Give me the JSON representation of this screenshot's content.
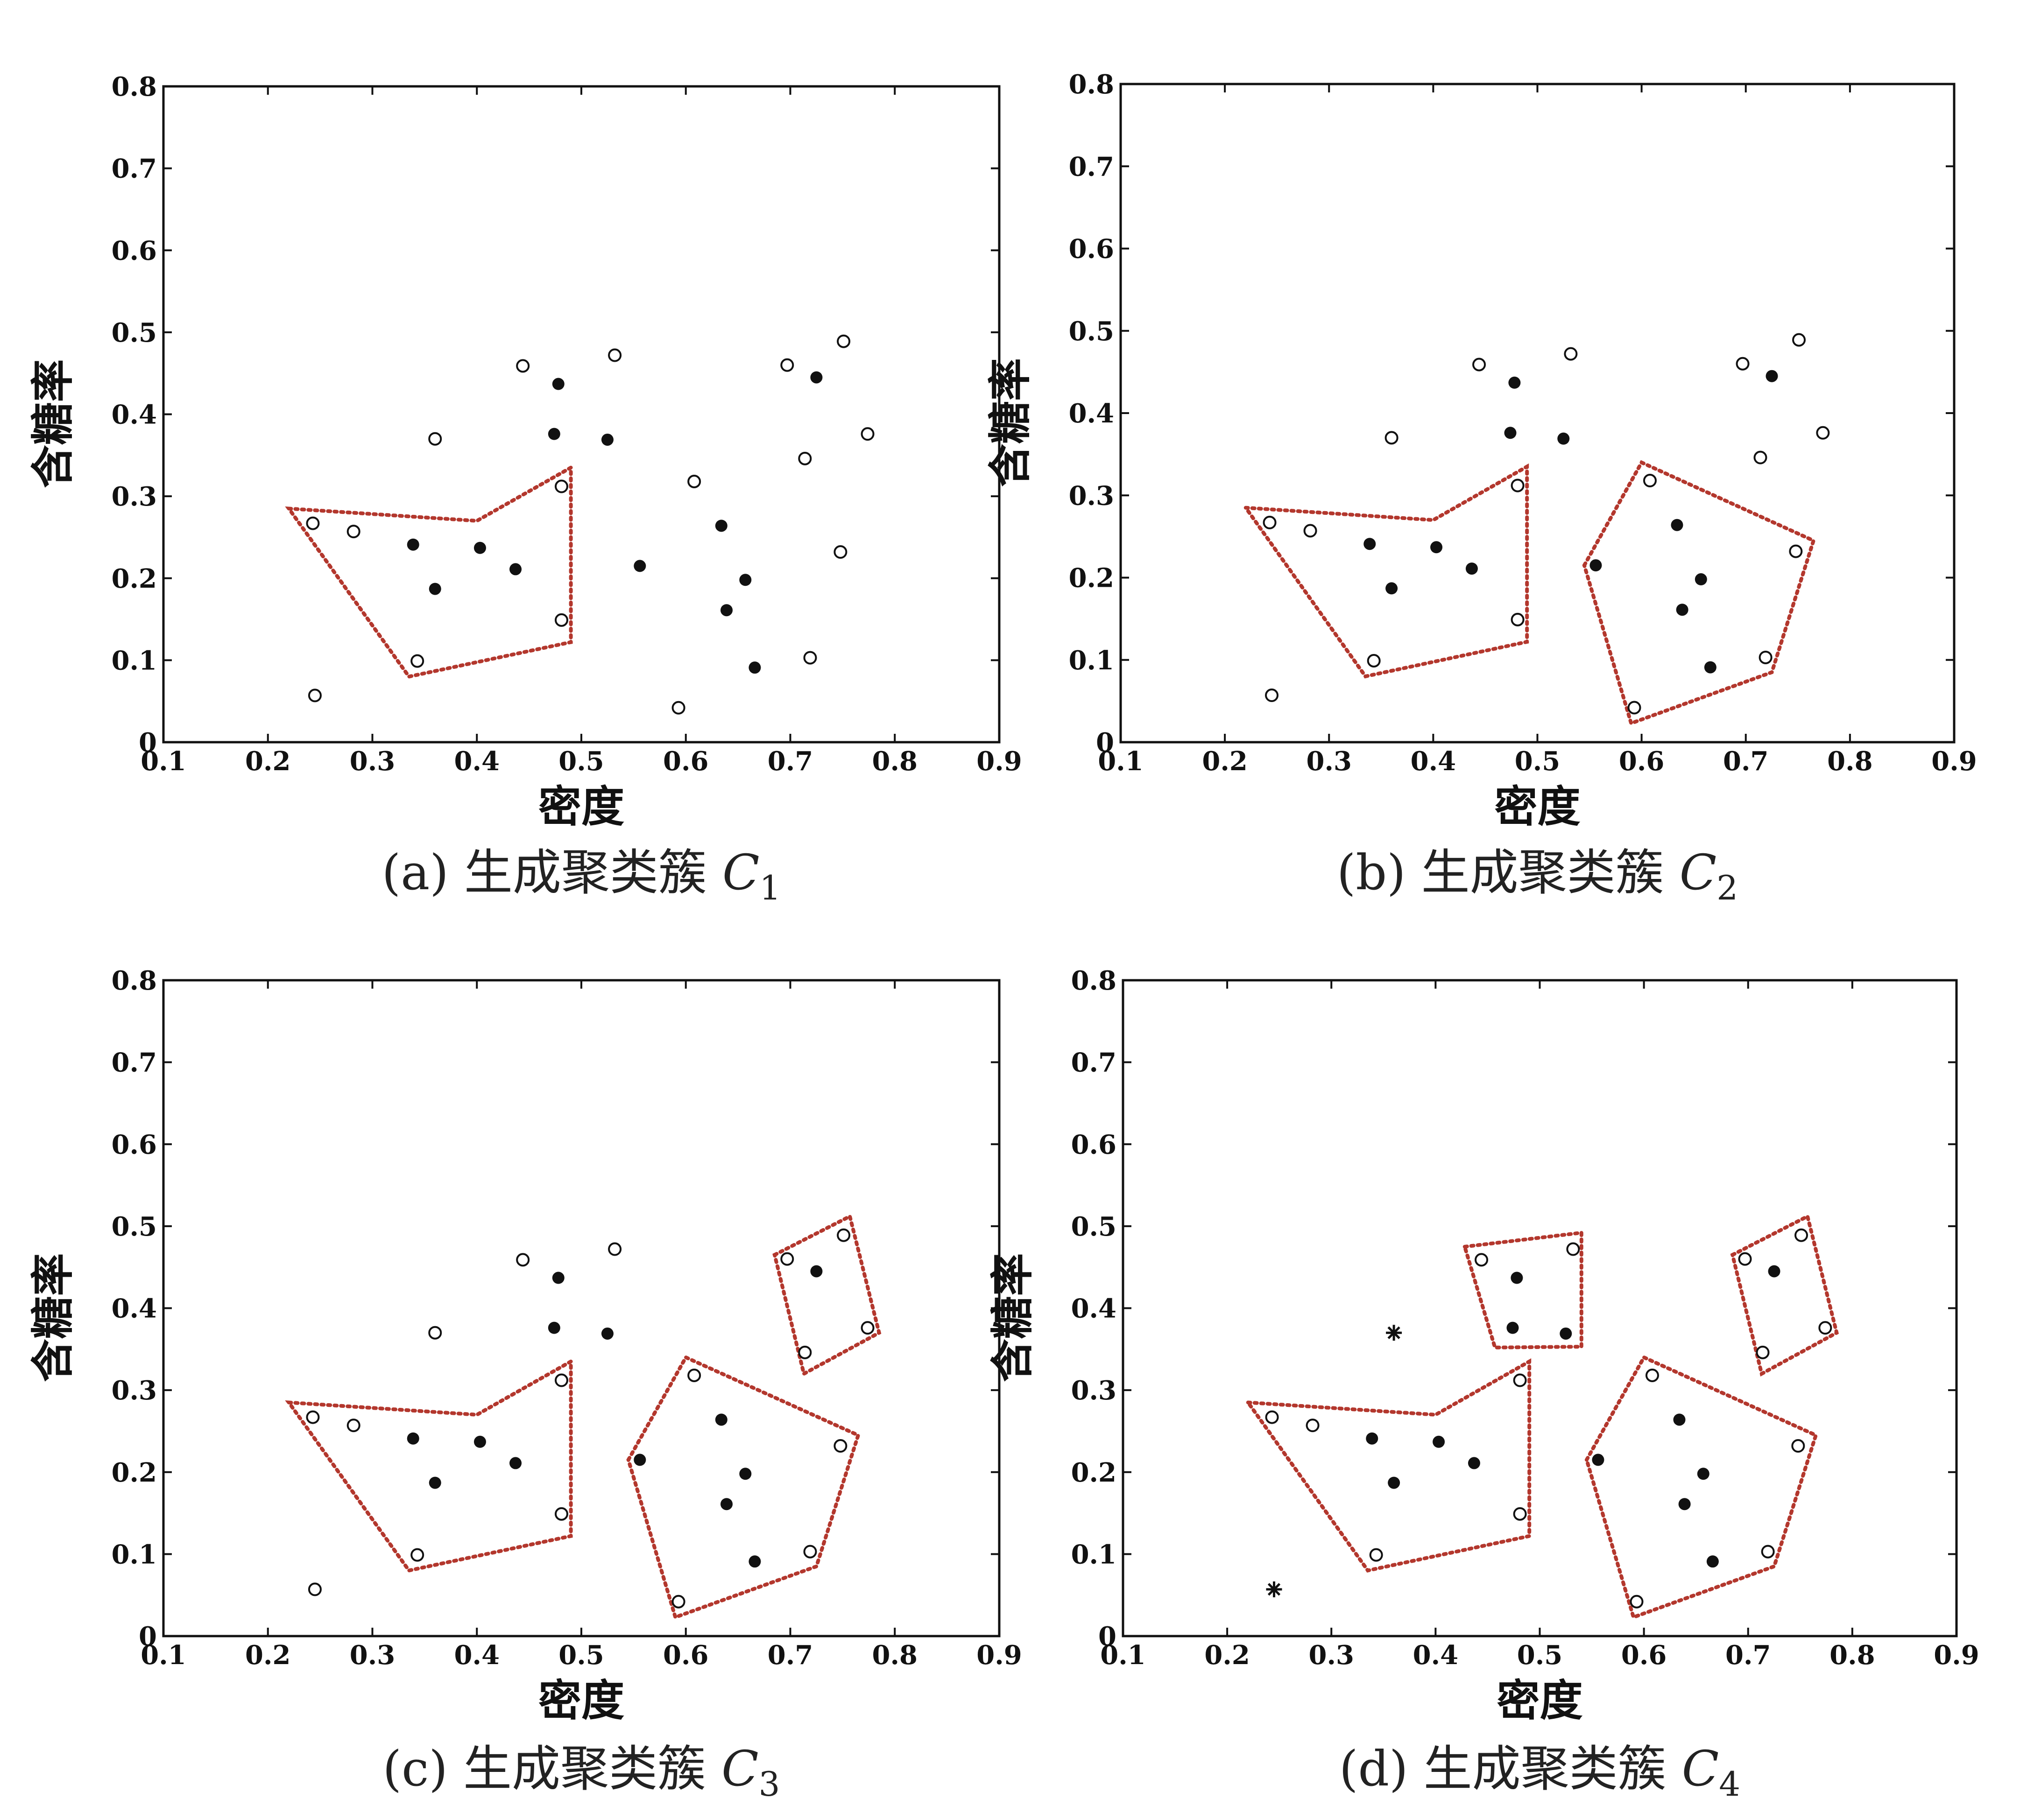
{
  "chart_data": [
    {
      "type": "scatter",
      "caption": {
        "prefix": "(a) 生成聚类簇 ",
        "var": "C",
        "sub": "1"
      },
      "xlabel": "密度",
      "ylabel": "含糖率",
      "xlim": [
        0.1,
        0.9
      ],
      "ylim": [
        0,
        0.8
      ],
      "xticks": [
        "0.1",
        "0.2",
        "0.3",
        "0.4",
        "0.5",
        "0.6",
        "0.7",
        "0.8",
        "0.9"
      ],
      "yticks": [
        "0",
        "0.1",
        "0.2",
        "0.3",
        "0.4",
        "0.5",
        "0.6",
        "0.7",
        "0.8"
      ],
      "grid": false,
      "hulls": [
        [
          [
            0.22,
            0.285
          ],
          [
            0.4,
            0.27
          ],
          [
            0.49,
            0.335
          ],
          [
            0.49,
            0.122
          ],
          [
            0.335,
            0.08
          ]
        ]
      ],
      "points": [
        {
          "x": 0.243,
          "y": 0.267,
          "kind": "open"
        },
        {
          "x": 0.282,
          "y": 0.257,
          "kind": "open"
        },
        {
          "x": 0.339,
          "y": 0.241,
          "kind": "filled"
        },
        {
          "x": 0.36,
          "y": 0.187,
          "kind": "filled"
        },
        {
          "x": 0.403,
          "y": 0.237,
          "kind": "filled"
        },
        {
          "x": 0.437,
          "y": 0.211,
          "kind": "filled"
        },
        {
          "x": 0.343,
          "y": 0.099,
          "kind": "open"
        },
        {
          "x": 0.481,
          "y": 0.149,
          "kind": "open"
        },
        {
          "x": 0.481,
          "y": 0.312,
          "kind": "open"
        },
        {
          "x": 0.245,
          "y": 0.057,
          "kind": "open"
        },
        {
          "x": 0.36,
          "y": 0.37,
          "kind": "open"
        },
        {
          "x": 0.444,
          "y": 0.459,
          "kind": "open"
        },
        {
          "x": 0.474,
          "y": 0.376,
          "kind": "filled"
        },
        {
          "x": 0.478,
          "y": 0.437,
          "kind": "filled"
        },
        {
          "x": 0.525,
          "y": 0.369,
          "kind": "filled"
        },
        {
          "x": 0.532,
          "y": 0.472,
          "kind": "open"
        },
        {
          "x": 0.556,
          "y": 0.215,
          "kind": "filled"
        },
        {
          "x": 0.593,
          "y": 0.042,
          "kind": "open"
        },
        {
          "x": 0.608,
          "y": 0.318,
          "kind": "open"
        },
        {
          "x": 0.634,
          "y": 0.264,
          "kind": "filled"
        },
        {
          "x": 0.639,
          "y": 0.161,
          "kind": "filled"
        },
        {
          "x": 0.657,
          "y": 0.198,
          "kind": "filled"
        },
        {
          "x": 0.666,
          "y": 0.091,
          "kind": "filled"
        },
        {
          "x": 0.697,
          "y": 0.46,
          "kind": "open"
        },
        {
          "x": 0.714,
          "y": 0.346,
          "kind": "open"
        },
        {
          "x": 0.719,
          "y": 0.103,
          "kind": "open"
        },
        {
          "x": 0.725,
          "y": 0.445,
          "kind": "filled"
        },
        {
          "x": 0.748,
          "y": 0.232,
          "kind": "open"
        },
        {
          "x": 0.751,
          "y": 0.489,
          "kind": "open"
        },
        {
          "x": 0.774,
          "y": 0.376,
          "kind": "open"
        }
      ]
    },
    {
      "type": "scatter",
      "caption": {
        "prefix": "(b) 生成聚类簇 ",
        "var": "C",
        "sub": "2"
      },
      "xlabel": "密度",
      "ylabel": "含糖率",
      "xlim": [
        0.1,
        0.9
      ],
      "ylim": [
        0,
        0.8
      ],
      "xticks": [
        "0.1",
        "0.2",
        "0.3",
        "0.4",
        "0.5",
        "0.6",
        "0.7",
        "0.8",
        "0.9"
      ],
      "yticks": [
        "0",
        "0.1",
        "0.2",
        "0.3",
        "0.4",
        "0.5",
        "0.6",
        "0.7",
        "0.8"
      ],
      "grid": false,
      "hulls": [
        [
          [
            0.22,
            0.285
          ],
          [
            0.4,
            0.27
          ],
          [
            0.49,
            0.335
          ],
          [
            0.49,
            0.122
          ],
          [
            0.335,
            0.08
          ]
        ],
        [
          [
            0.545,
            0.215
          ],
          [
            0.6,
            0.34
          ],
          [
            0.765,
            0.245
          ],
          [
            0.725,
            0.085
          ],
          [
            0.59,
            0.023
          ]
        ]
      ],
      "points": [
        {
          "x": 0.243,
          "y": 0.267,
          "kind": "open"
        },
        {
          "x": 0.282,
          "y": 0.257,
          "kind": "open"
        },
        {
          "x": 0.339,
          "y": 0.241,
          "kind": "filled"
        },
        {
          "x": 0.36,
          "y": 0.187,
          "kind": "filled"
        },
        {
          "x": 0.403,
          "y": 0.237,
          "kind": "filled"
        },
        {
          "x": 0.437,
          "y": 0.211,
          "kind": "filled"
        },
        {
          "x": 0.343,
          "y": 0.099,
          "kind": "open"
        },
        {
          "x": 0.481,
          "y": 0.149,
          "kind": "open"
        },
        {
          "x": 0.481,
          "y": 0.312,
          "kind": "open"
        },
        {
          "x": 0.245,
          "y": 0.057,
          "kind": "open"
        },
        {
          "x": 0.36,
          "y": 0.37,
          "kind": "open"
        },
        {
          "x": 0.444,
          "y": 0.459,
          "kind": "open"
        },
        {
          "x": 0.474,
          "y": 0.376,
          "kind": "filled"
        },
        {
          "x": 0.478,
          "y": 0.437,
          "kind": "filled"
        },
        {
          "x": 0.525,
          "y": 0.369,
          "kind": "filled"
        },
        {
          "x": 0.532,
          "y": 0.472,
          "kind": "open"
        },
        {
          "x": 0.556,
          "y": 0.215,
          "kind": "filled"
        },
        {
          "x": 0.593,
          "y": 0.042,
          "kind": "open"
        },
        {
          "x": 0.608,
          "y": 0.318,
          "kind": "open"
        },
        {
          "x": 0.634,
          "y": 0.264,
          "kind": "filled"
        },
        {
          "x": 0.639,
          "y": 0.161,
          "kind": "filled"
        },
        {
          "x": 0.657,
          "y": 0.198,
          "kind": "filled"
        },
        {
          "x": 0.666,
          "y": 0.091,
          "kind": "filled"
        },
        {
          "x": 0.697,
          "y": 0.46,
          "kind": "open"
        },
        {
          "x": 0.714,
          "y": 0.346,
          "kind": "open"
        },
        {
          "x": 0.719,
          "y": 0.103,
          "kind": "open"
        },
        {
          "x": 0.725,
          "y": 0.445,
          "kind": "filled"
        },
        {
          "x": 0.748,
          "y": 0.232,
          "kind": "open"
        },
        {
          "x": 0.751,
          "y": 0.489,
          "kind": "open"
        },
        {
          "x": 0.774,
          "y": 0.376,
          "kind": "open"
        }
      ]
    },
    {
      "type": "scatter",
      "caption": {
        "prefix": "(c) 生成聚类簇 ",
        "var": "C",
        "sub": "3"
      },
      "xlabel": "密度",
      "ylabel": "含糖率",
      "xlim": [
        0.1,
        0.9
      ],
      "ylim": [
        0,
        0.8
      ],
      "xticks": [
        "0.1",
        "0.2",
        "0.3",
        "0.4",
        "0.5",
        "0.6",
        "0.7",
        "0.8",
        "0.9"
      ],
      "yticks": [
        "0",
        "0.1",
        "0.2",
        "0.3",
        "0.4",
        "0.5",
        "0.6",
        "0.7",
        "0.8"
      ],
      "grid": false,
      "hulls": [
        [
          [
            0.22,
            0.285
          ],
          [
            0.4,
            0.27
          ],
          [
            0.49,
            0.335
          ],
          [
            0.49,
            0.122
          ],
          [
            0.335,
            0.08
          ]
        ],
        [
          [
            0.545,
            0.215
          ],
          [
            0.6,
            0.34
          ],
          [
            0.765,
            0.245
          ],
          [
            0.725,
            0.085
          ],
          [
            0.59,
            0.023
          ]
        ],
        [
          [
            0.685,
            0.465
          ],
          [
            0.757,
            0.512
          ],
          [
            0.785,
            0.37
          ],
          [
            0.713,
            0.32
          ]
        ]
      ],
      "points": [
        {
          "x": 0.243,
          "y": 0.267,
          "kind": "open"
        },
        {
          "x": 0.282,
          "y": 0.257,
          "kind": "open"
        },
        {
          "x": 0.339,
          "y": 0.241,
          "kind": "filled"
        },
        {
          "x": 0.36,
          "y": 0.187,
          "kind": "filled"
        },
        {
          "x": 0.403,
          "y": 0.237,
          "kind": "filled"
        },
        {
          "x": 0.437,
          "y": 0.211,
          "kind": "filled"
        },
        {
          "x": 0.343,
          "y": 0.099,
          "kind": "open"
        },
        {
          "x": 0.481,
          "y": 0.149,
          "kind": "open"
        },
        {
          "x": 0.481,
          "y": 0.312,
          "kind": "open"
        },
        {
          "x": 0.245,
          "y": 0.057,
          "kind": "open"
        },
        {
          "x": 0.36,
          "y": 0.37,
          "kind": "open"
        },
        {
          "x": 0.444,
          "y": 0.459,
          "kind": "open"
        },
        {
          "x": 0.474,
          "y": 0.376,
          "kind": "filled"
        },
        {
          "x": 0.478,
          "y": 0.437,
          "kind": "filled"
        },
        {
          "x": 0.525,
          "y": 0.369,
          "kind": "filled"
        },
        {
          "x": 0.532,
          "y": 0.472,
          "kind": "open"
        },
        {
          "x": 0.556,
          "y": 0.215,
          "kind": "filled"
        },
        {
          "x": 0.593,
          "y": 0.042,
          "kind": "open"
        },
        {
          "x": 0.608,
          "y": 0.318,
          "kind": "open"
        },
        {
          "x": 0.634,
          "y": 0.264,
          "kind": "filled"
        },
        {
          "x": 0.639,
          "y": 0.161,
          "kind": "filled"
        },
        {
          "x": 0.657,
          "y": 0.198,
          "kind": "filled"
        },
        {
          "x": 0.666,
          "y": 0.091,
          "kind": "filled"
        },
        {
          "x": 0.697,
          "y": 0.46,
          "kind": "open"
        },
        {
          "x": 0.714,
          "y": 0.346,
          "kind": "open"
        },
        {
          "x": 0.719,
          "y": 0.103,
          "kind": "open"
        },
        {
          "x": 0.725,
          "y": 0.445,
          "kind": "filled"
        },
        {
          "x": 0.748,
          "y": 0.232,
          "kind": "open"
        },
        {
          "x": 0.751,
          "y": 0.489,
          "kind": "open"
        },
        {
          "x": 0.774,
          "y": 0.376,
          "kind": "open"
        }
      ]
    },
    {
      "type": "scatter",
      "caption": {
        "prefix": "(d) 生成聚类簇 ",
        "var": "C",
        "sub": "4"
      },
      "xlabel": "密度",
      "ylabel": "含糖率",
      "xlim": [
        0.1,
        0.9
      ],
      "ylim": [
        0,
        0.8
      ],
      "xticks": [
        "0.1",
        "0.2",
        "0.3",
        "0.4",
        "0.5",
        "0.6",
        "0.7",
        "0.8",
        "0.9"
      ],
      "yticks": [
        "0",
        "0.1",
        "0.2",
        "0.3",
        "0.4",
        "0.5",
        "0.6",
        "0.7",
        "0.8"
      ],
      "grid": false,
      "hulls": [
        [
          [
            0.22,
            0.285
          ],
          [
            0.4,
            0.27
          ],
          [
            0.49,
            0.335
          ],
          [
            0.49,
            0.122
          ],
          [
            0.335,
            0.08
          ]
        ],
        [
          [
            0.545,
            0.215
          ],
          [
            0.6,
            0.34
          ],
          [
            0.765,
            0.245
          ],
          [
            0.725,
            0.085
          ],
          [
            0.59,
            0.023
          ]
        ],
        [
          [
            0.685,
            0.465
          ],
          [
            0.757,
            0.512
          ],
          [
            0.785,
            0.37
          ],
          [
            0.713,
            0.32
          ]
        ],
        [
          [
            0.428,
            0.475
          ],
          [
            0.54,
            0.492
          ],
          [
            0.54,
            0.353
          ],
          [
            0.457,
            0.352
          ]
        ]
      ],
      "points": [
        {
          "x": 0.243,
          "y": 0.267,
          "kind": "open"
        },
        {
          "x": 0.282,
          "y": 0.257,
          "kind": "open"
        },
        {
          "x": 0.339,
          "y": 0.241,
          "kind": "filled"
        },
        {
          "x": 0.36,
          "y": 0.187,
          "kind": "filled"
        },
        {
          "x": 0.403,
          "y": 0.237,
          "kind": "filled"
        },
        {
          "x": 0.437,
          "y": 0.211,
          "kind": "filled"
        },
        {
          "x": 0.343,
          "y": 0.099,
          "kind": "open"
        },
        {
          "x": 0.481,
          "y": 0.149,
          "kind": "open"
        },
        {
          "x": 0.481,
          "y": 0.312,
          "kind": "open"
        },
        {
          "x": 0.245,
          "y": 0.057,
          "kind": "star"
        },
        {
          "x": 0.36,
          "y": 0.37,
          "kind": "star"
        },
        {
          "x": 0.444,
          "y": 0.459,
          "kind": "open"
        },
        {
          "x": 0.474,
          "y": 0.376,
          "kind": "filled"
        },
        {
          "x": 0.478,
          "y": 0.437,
          "kind": "filled"
        },
        {
          "x": 0.525,
          "y": 0.369,
          "kind": "filled"
        },
        {
          "x": 0.532,
          "y": 0.472,
          "kind": "open"
        },
        {
          "x": 0.556,
          "y": 0.215,
          "kind": "filled"
        },
        {
          "x": 0.593,
          "y": 0.042,
          "kind": "open"
        },
        {
          "x": 0.608,
          "y": 0.318,
          "kind": "open"
        },
        {
          "x": 0.634,
          "y": 0.264,
          "kind": "filled"
        },
        {
          "x": 0.639,
          "y": 0.161,
          "kind": "filled"
        },
        {
          "x": 0.657,
          "y": 0.198,
          "kind": "filled"
        },
        {
          "x": 0.666,
          "y": 0.091,
          "kind": "filled"
        },
        {
          "x": 0.697,
          "y": 0.46,
          "kind": "open"
        },
        {
          "x": 0.714,
          "y": 0.346,
          "kind": "open"
        },
        {
          "x": 0.719,
          "y": 0.103,
          "kind": "open"
        },
        {
          "x": 0.725,
          "y": 0.445,
          "kind": "filled"
        },
        {
          "x": 0.748,
          "y": 0.232,
          "kind": "open"
        },
        {
          "x": 0.751,
          "y": 0.489,
          "kind": "open"
        },
        {
          "x": 0.774,
          "y": 0.376,
          "kind": "open"
        }
      ]
    }
  ],
  "colors": {
    "hull": "#b3372d",
    "axis": "#111111",
    "point": "#111111"
  }
}
